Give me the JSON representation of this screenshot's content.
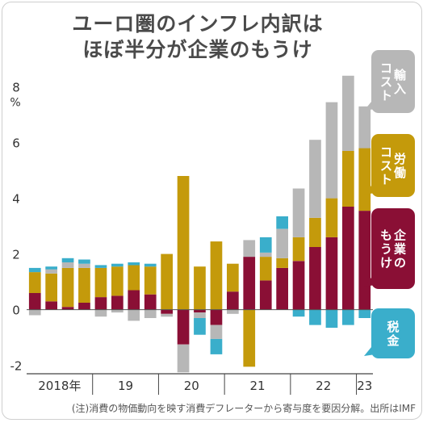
{
  "title_line1": "ユーロ圏のインフレ内訳は",
  "title_line2": "ほぼ半分が企業のもうけ",
  "note": "(注)消費の物価動向を映す消費デフレーターから寄与度を要因分解。出所はIMF",
  "colors": {
    "import": "#b7b7b7",
    "labor": "#c49a0b",
    "profit": "#8a0f35",
    "tax": "#3aaecb"
  },
  "chart_data": {
    "type": "bar",
    "stacked": true,
    "y_unit_label": "%",
    "ylim": [
      -2.3,
      8.8
    ],
    "y_ticks": [
      "-2",
      "0",
      "2",
      "4",
      "6",
      "8"
    ],
    "x_group_labels": [
      "2018年",
      "19",
      "20",
      "21",
      "22",
      "23"
    ],
    "categories": [
      "2018Q1",
      "2018Q2",
      "2018Q3",
      "2018Q4",
      "2019Q1",
      "2019Q2",
      "2019Q3",
      "2019Q4",
      "2020Q1",
      "2020Q2",
      "2020Q3",
      "2020Q4",
      "2021Q1",
      "2021Q2",
      "2021Q3",
      "2021Q4",
      "2022Q1",
      "2022Q2",
      "2022Q3",
      "2022Q4",
      "2023Q1"
    ],
    "series": [
      {
        "name": "企業のもうけ",
        "key": "profit",
        "values": [
          0.6,
          0.3,
          0.1,
          0.25,
          0.45,
          0.5,
          0.7,
          0.55,
          -0.15,
          -1.25,
          -0.1,
          -0.55,
          0.65,
          1.9,
          1.05,
          1.5,
          1.75,
          2.25,
          2.6,
          3.7,
          3.55
        ]
      },
      {
        "name": "労働コスト",
        "key": "labor",
        "values": [
          0.75,
          1.0,
          1.4,
          1.25,
          1.05,
          1.05,
          0.9,
          1.0,
          2.0,
          4.8,
          1.55,
          2.45,
          1.0,
          -2.05,
          0.85,
          0.35,
          0.85,
          1.05,
          1.4,
          2.0,
          2.25
        ]
      },
      {
        "name": "輸入コスト",
        "key": "import",
        "values": [
          -0.2,
          0.15,
          0.2,
          0.15,
          -0.25,
          -0.1,
          -0.4,
          -0.3,
          -0.1,
          -1.0,
          -0.2,
          -0.5,
          -0.15,
          0.6,
          0.15,
          1.05,
          1.75,
          2.8,
          3.45,
          2.7,
          1.5
        ]
      },
      {
        "name": "税金",
        "key": "tax",
        "values": [
          0.15,
          0.1,
          0.15,
          0.15,
          0.1,
          0.1,
          0.1,
          0.1,
          0.0,
          0.0,
          -0.6,
          -0.55,
          0.0,
          0.0,
          0.55,
          0.45,
          -0.25,
          -0.55,
          -0.65,
          -0.55,
          -0.3
        ]
      }
    ],
    "legend": [
      {
        "key": "import",
        "label": "輸入コスト",
        "lines": [
          "輸入",
          "コスト"
        ]
      },
      {
        "key": "labor",
        "label": "労働コスト",
        "lines": [
          "労働",
          "コスト"
        ]
      },
      {
        "key": "profit",
        "label": "企業のもうけ",
        "lines": [
          "企業の",
          "もうけ"
        ]
      },
      {
        "key": "tax",
        "label": "税金",
        "lines": [
          "税金"
        ]
      }
    ]
  }
}
